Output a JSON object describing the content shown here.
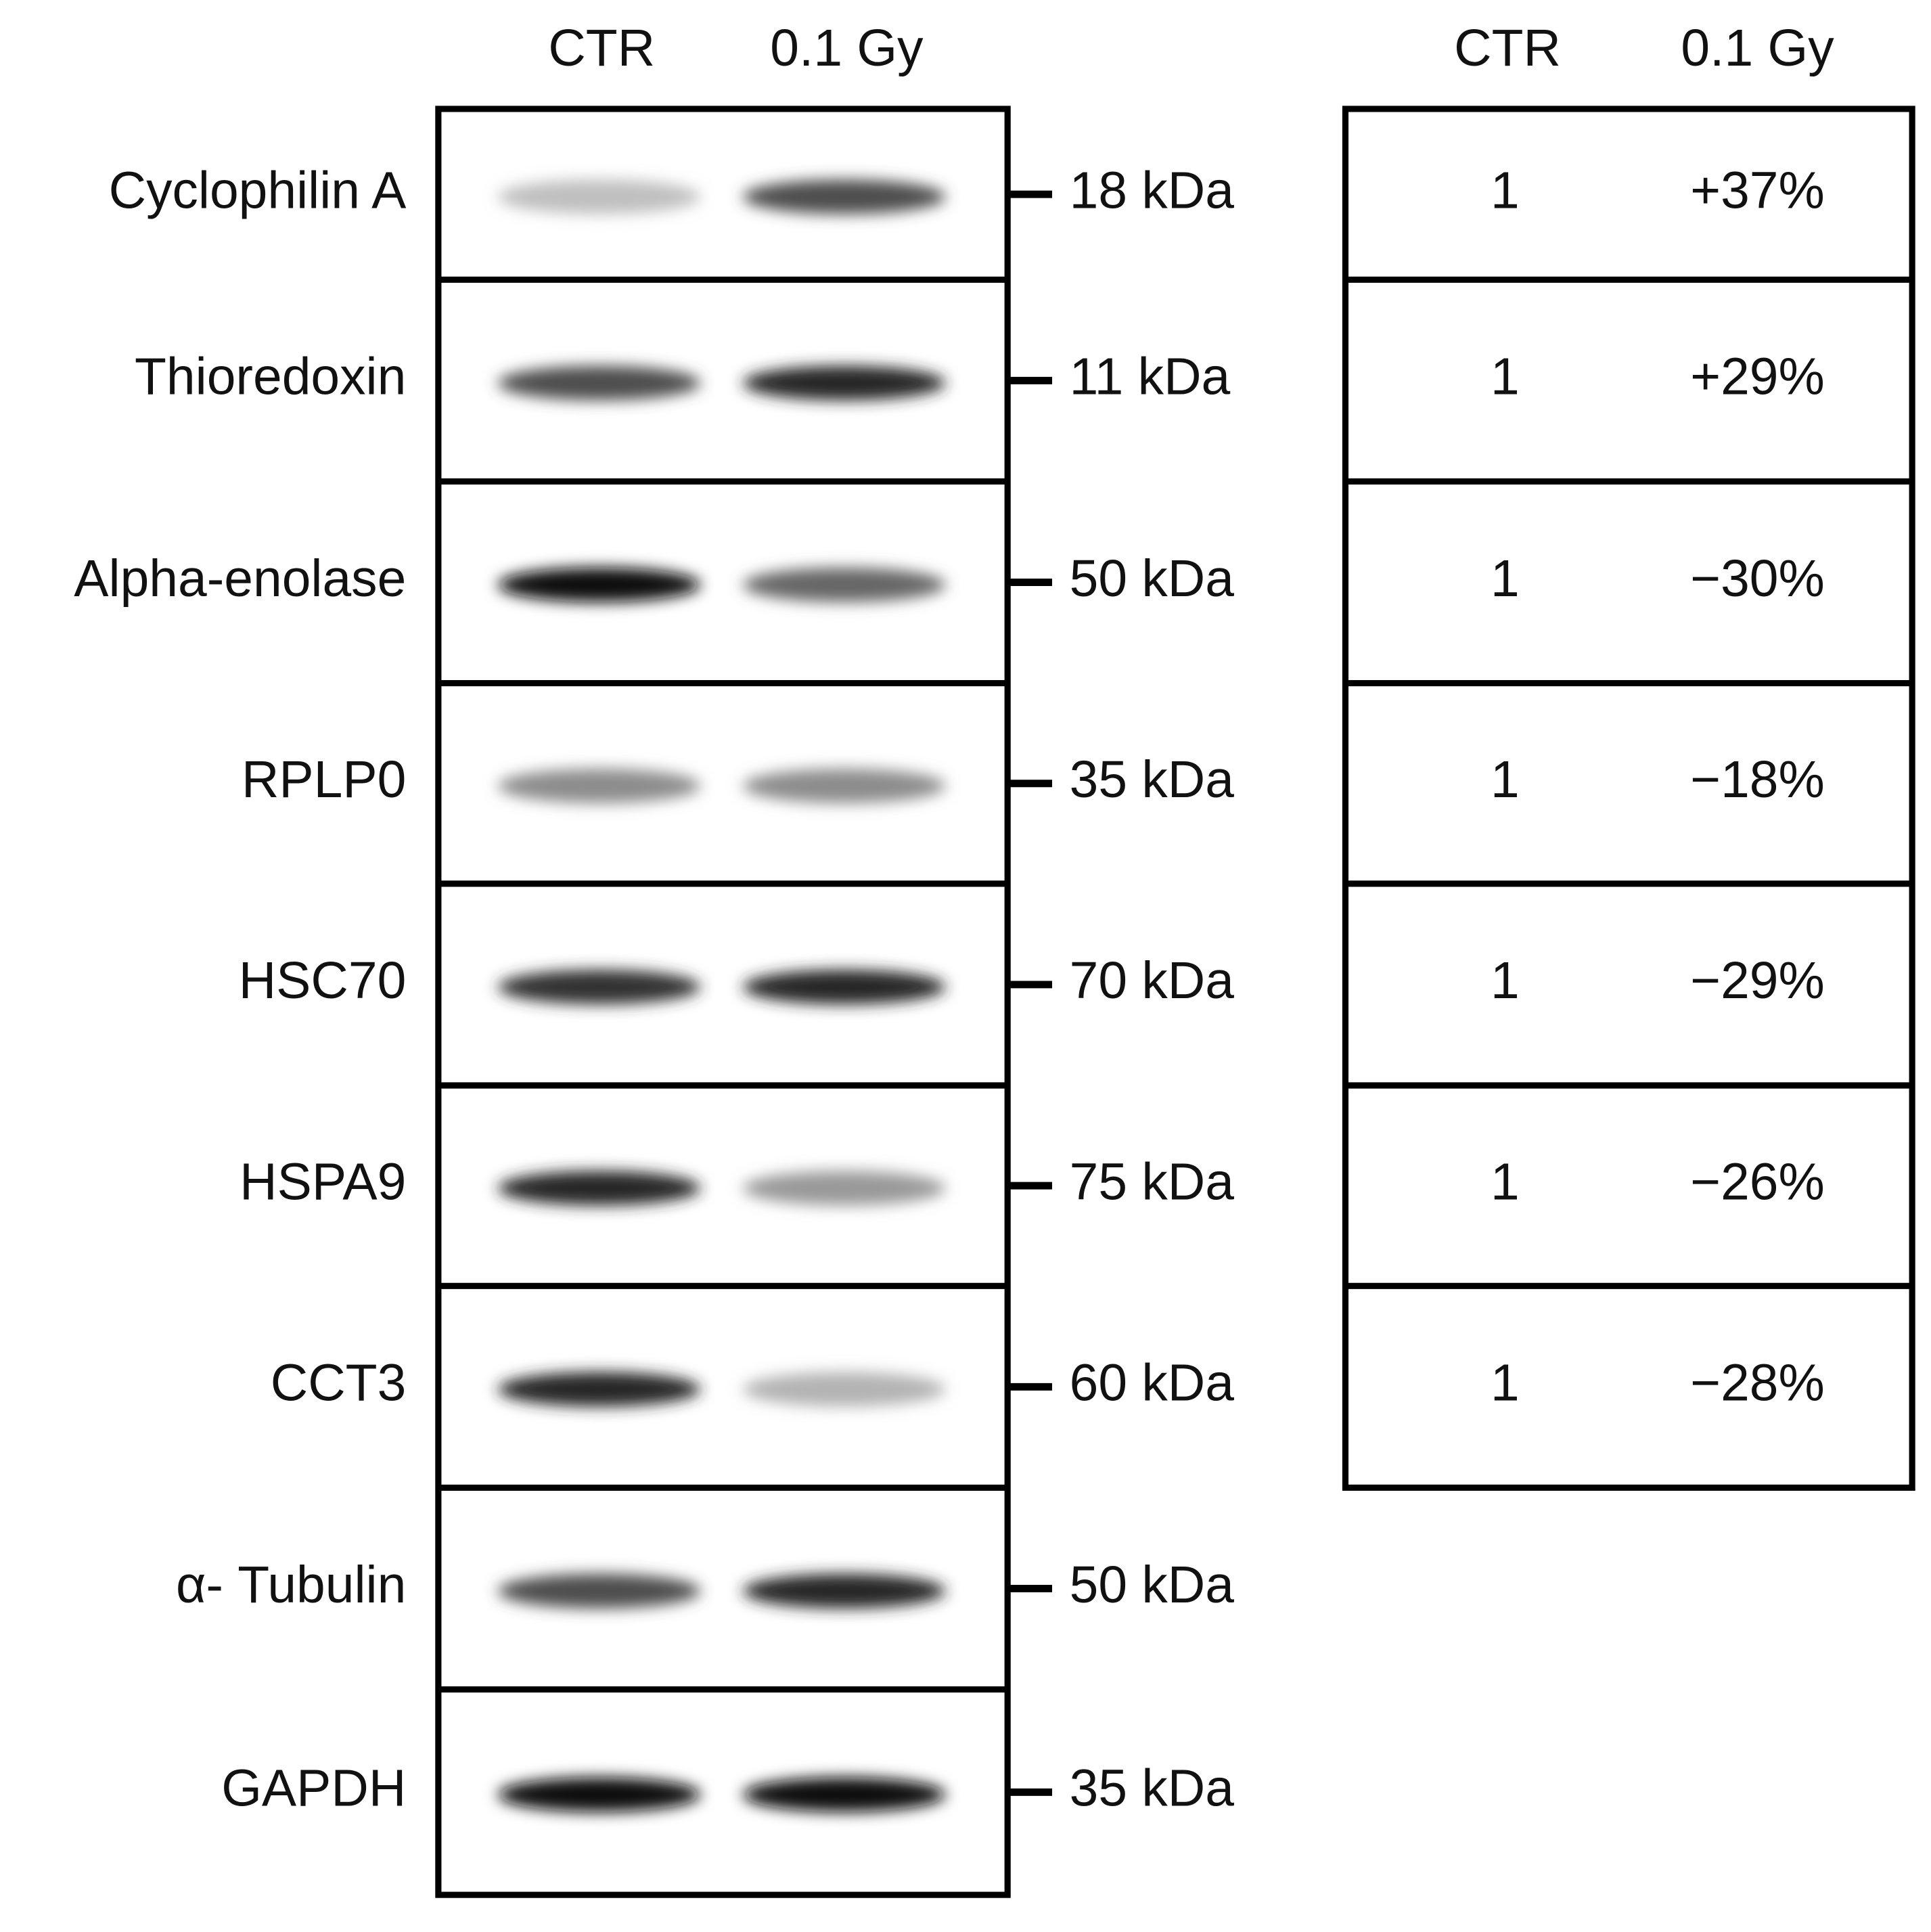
{
  "blot": {
    "lanes": [
      "CTR",
      "0.1 Gy"
    ],
    "rows": [
      {
        "protein": "Cyclophilin A",
        "size": "18 kDa"
      },
      {
        "protein": "Thioredoxin",
        "size": "11 kDa"
      },
      {
        "protein": "Alpha-enolase",
        "size": "50 kDa"
      },
      {
        "protein": "RPLP0",
        "size": "35 kDa"
      },
      {
        "protein": "HSC70",
        "size": "70 kDa"
      },
      {
        "protein": "HSPA9",
        "size": "75 kDa"
      },
      {
        "protein": "CCT3",
        "size": "60 kDa"
      },
      {
        "protein": "α- Tubulin",
        "size": "50 kDa"
      },
      {
        "protein": "GAPDH",
        "size": "35 kDa"
      }
    ]
  },
  "quantification": {
    "columns": [
      "CTR",
      "0.1 Gy"
    ],
    "rows": [
      [
        "1",
        "+37%"
      ],
      [
        "1",
        "+29%"
      ],
      [
        "1",
        "−30%"
      ],
      [
        "1",
        "−18%"
      ],
      [
        "1",
        "−29%"
      ],
      [
        "1",
        "−26%"
      ],
      [
        "1",
        "−28%"
      ]
    ]
  }
}
